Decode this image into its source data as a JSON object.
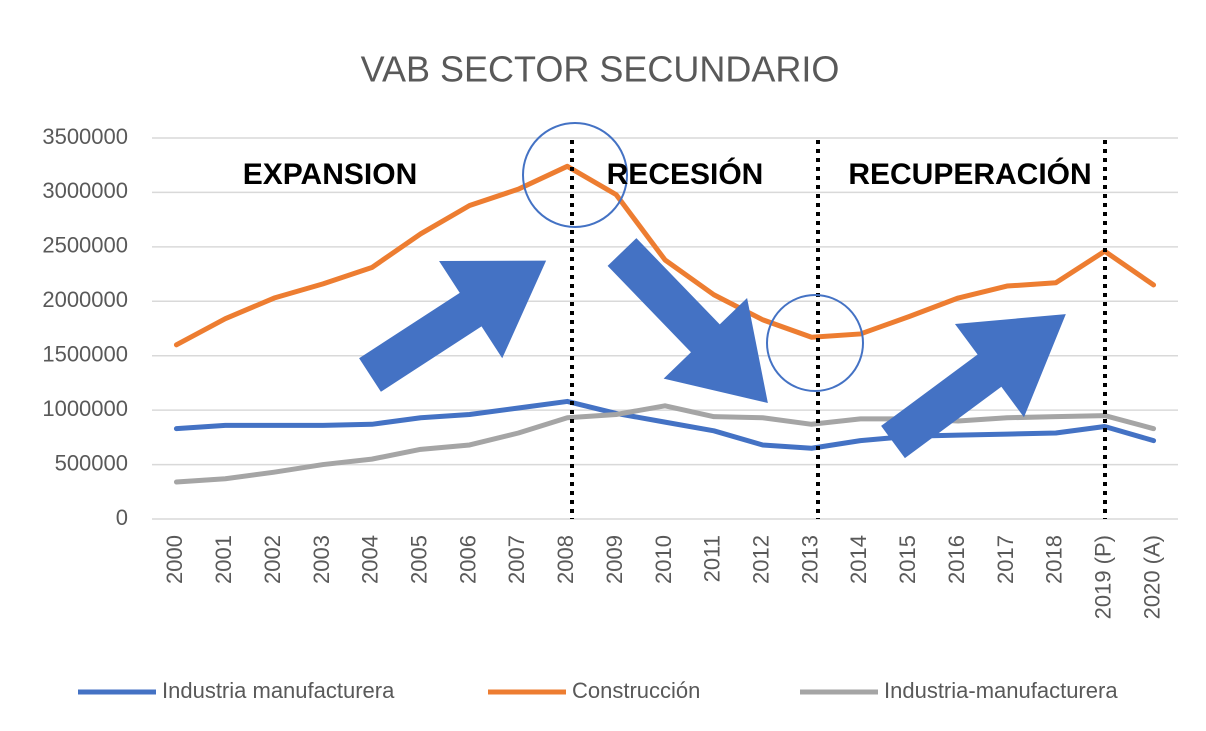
{
  "chart_data": {
    "type": "line",
    "title": "VAB SECTOR SECUNDARIO",
    "categories": [
      "2000",
      "2001",
      "2002",
      "2003",
      "2004",
      "2005",
      "2006",
      "2007",
      "2008",
      "2009",
      "2010",
      "2011",
      "2012",
      "2013",
      "2014",
      "2015",
      "2016",
      "2017",
      "2018",
      "2019 (P)",
      "2020 (A)"
    ],
    "series": [
      {
        "name": "Industria manufacturera",
        "color": "#4472c4",
        "values": [
          830000,
          860000,
          860000,
          860000,
          870000,
          930000,
          960000,
          1020000,
          1080000,
          970000,
          890000,
          810000,
          680000,
          650000,
          720000,
          760000,
          770000,
          780000,
          790000,
          850000,
          720000
        ]
      },
      {
        "name": "Construcción",
        "color": "#ed7d31",
        "values": [
          1600000,
          1840000,
          2030000,
          2160000,
          2310000,
          2620000,
          2880000,
          3030000,
          3240000,
          2980000,
          2380000,
          2060000,
          1830000,
          1670000,
          1700000,
          1860000,
          2030000,
          2140000,
          2170000,
          2460000,
          2150000
        ]
      },
      {
        "name": "Industria-manufacturera",
        "color": "#a5a5a5",
        "values": [
          340000,
          370000,
          430000,
          500000,
          550000,
          640000,
          680000,
          790000,
          930000,
          960000,
          1040000,
          940000,
          930000,
          870000,
          920000,
          920000,
          900000,
          930000,
          940000,
          950000,
          830000
        ]
      }
    ],
    "ylim": [
      0,
      3500000
    ],
    "yticks": [
      0,
      500000,
      1000000,
      1500000,
      2000000,
      2500000,
      3000000,
      3500000
    ],
    "grid": true,
    "annotations": [
      "EXPANSION",
      "RECESIÓN",
      "RECUPERACIÓN"
    ]
  }
}
